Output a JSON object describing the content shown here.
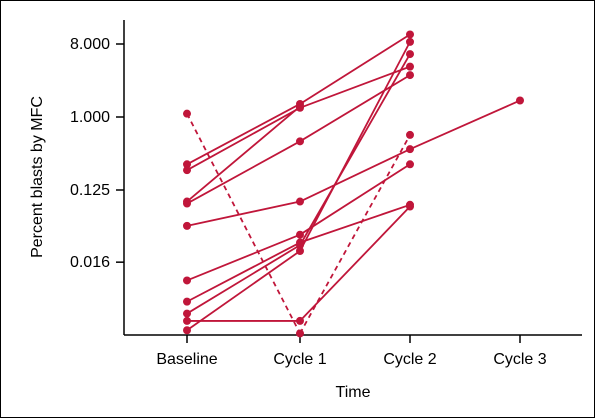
{
  "chart_data": {
    "type": "line",
    "title": "",
    "xlabel": "Time",
    "ylabel": "Percent blasts by MFC",
    "y_scale": "log2",
    "ylim": [
      0.0025,
      13
    ],
    "categories": [
      "Baseline",
      "Cycle 1",
      "Cycle 2",
      "Cycle 3"
    ],
    "yticks": [
      {
        "value": 8.0,
        "label": "8.000"
      },
      {
        "value": 1.0,
        "label": "1.000"
      },
      {
        "value": 0.125,
        "label": "0.125"
      },
      {
        "value": 0.016,
        "label": "0.016"
      }
    ],
    "grid": false,
    "legend": "none",
    "color": "#c0163a",
    "series": [
      {
        "values": [
          0.26,
          1.45,
          10.5,
          null
        ],
        "style": "solid"
      },
      {
        "values": [
          0.22,
          1.3,
          4.2,
          null
        ],
        "style": "solid"
      },
      {
        "values": [
          0.09,
          1.35,
          null,
          null
        ],
        "style": "solid"
      },
      {
        "values": [
          0.085,
          0.5,
          3.3,
          null
        ],
        "style": "solid"
      },
      {
        "values": [
          0.045,
          0.09,
          0.4,
          1.6
        ],
        "style": "solid"
      },
      {
        "values": [
          0.0095,
          0.035,
          0.26,
          null
        ],
        "style": "solid"
      },
      {
        "values": [
          0.0052,
          0.028,
          0.082,
          null
        ],
        "style": "solid"
      },
      {
        "values": [
          0.0023,
          0.022,
          8.5,
          null
        ],
        "style": "solid"
      },
      {
        "values": [
          0.0037,
          0.026,
          6.0,
          null
        ],
        "style": "solid"
      },
      {
        "values": [
          0.003,
          0.003,
          0.078,
          null
        ],
        "style": "solid"
      },
      {
        "values": [
          1.1,
          0.0021,
          0.6,
          null
        ],
        "style": "dashed"
      }
    ]
  }
}
